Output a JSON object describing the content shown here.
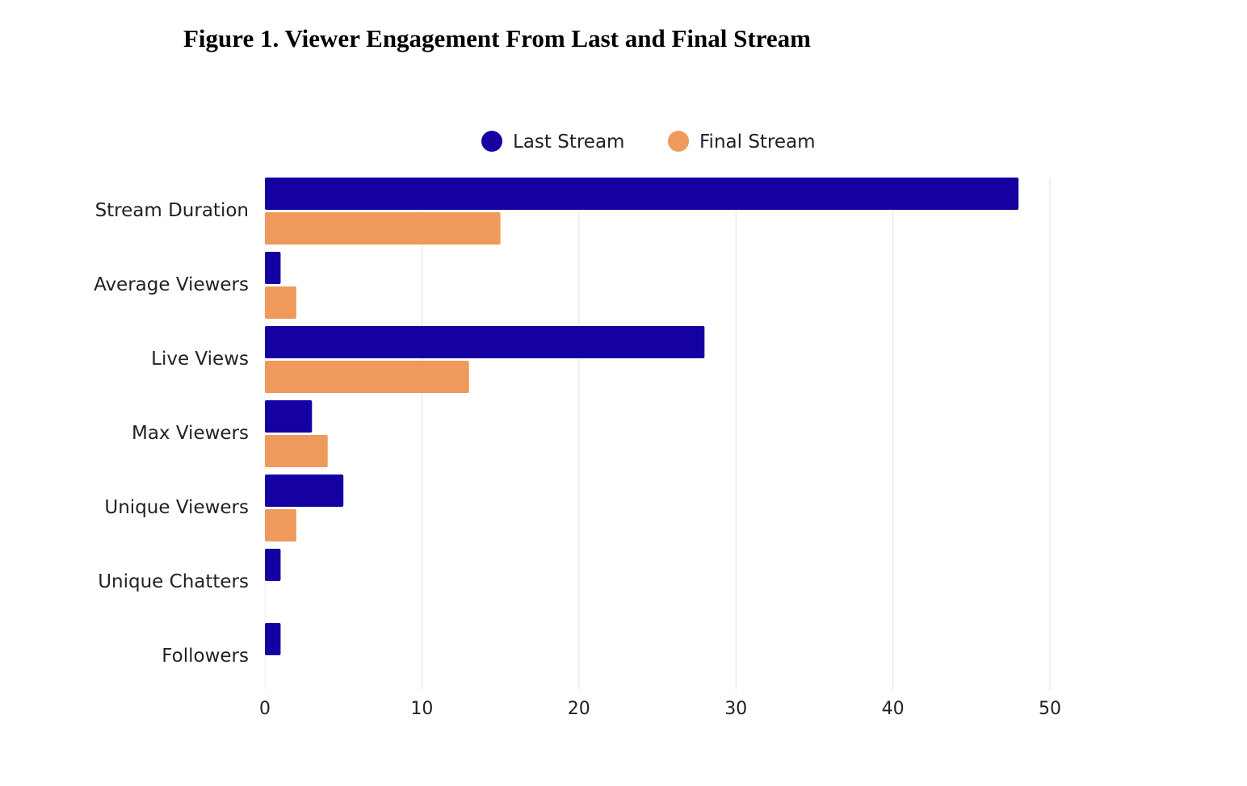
{
  "title": "Figure 1. Viewer Engagement From Last and Final Stream",
  "chart_data": {
    "type": "bar",
    "orientation": "horizontal",
    "title": "Figure 1. Viewer Engagement From Last and Final Stream",
    "categories": [
      "Stream Duration",
      "Average Viewers",
      "Live Views",
      "Max Viewers",
      "Unique Viewers",
      "Unique Chatters",
      "Followers"
    ],
    "series": [
      {
        "name": "Last Stream",
        "color": "#1500a1",
        "values": [
          48,
          1,
          28,
          3,
          5,
          1,
          1
        ]
      },
      {
        "name": "Final Stream",
        "color": "#f0995c",
        "values": [
          15,
          2,
          13,
          4,
          2,
          0,
          0
        ]
      }
    ],
    "xlim": [
      0,
      50
    ],
    "xticks": [
      "0",
      "10",
      "20",
      "30",
      "40",
      "50"
    ],
    "grid": true,
    "legend": "top-center",
    "xlabel": "",
    "ylabel": ""
  }
}
